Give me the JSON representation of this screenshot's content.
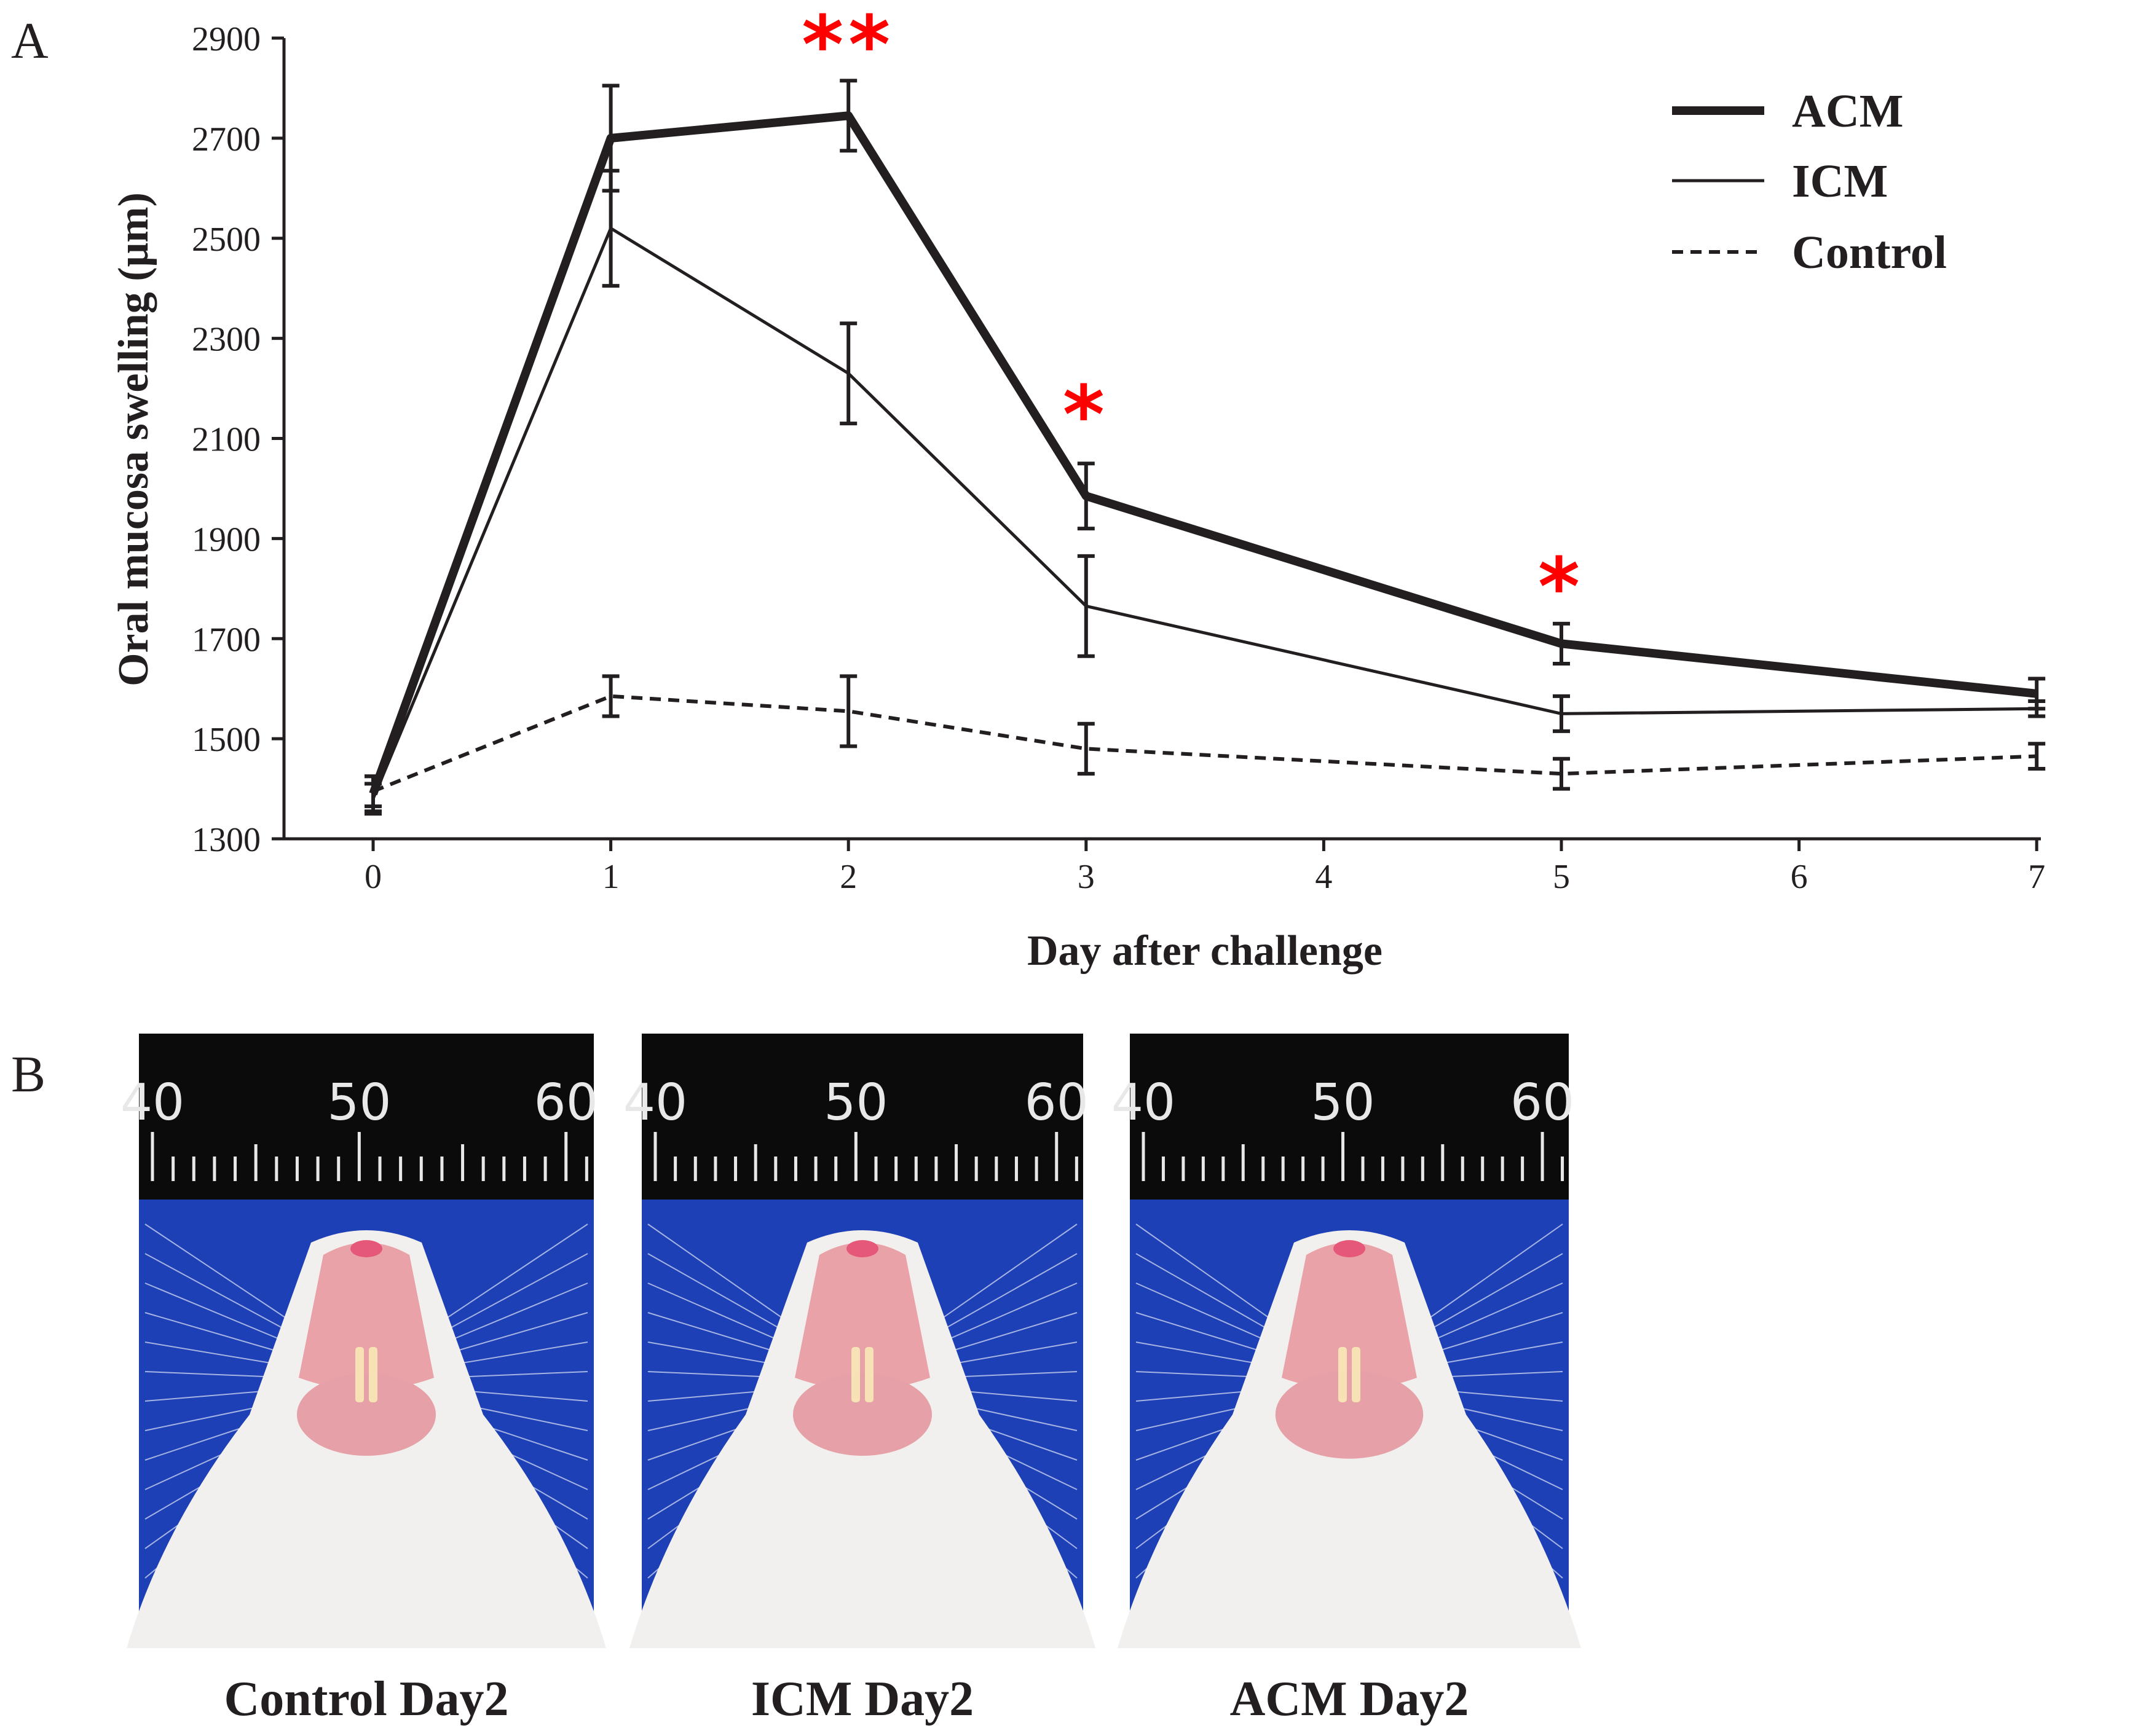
{
  "panels": {
    "a": "A",
    "b": "B"
  },
  "chart_data": {
    "type": "line",
    "title": "",
    "xlabel": "Day after challenge",
    "ylabel": "Oral mucosa swelling (μm)",
    "x": [
      0,
      1,
      2,
      3,
      5,
      7
    ],
    "xticks": [
      "0",
      "1",
      "2",
      "3",
      "4",
      "5",
      "6",
      "7"
    ],
    "xlim": [
      0,
      7
    ],
    "ylim": [
      1300,
      2900
    ],
    "yticks": [
      "1300",
      "1500",
      "1700",
      "1900",
      "2100",
      "2300",
      "2500",
      "2700",
      "2900"
    ],
    "grid": false,
    "legend_position": "top-right",
    "series": [
      {
        "name": "ACM",
        "style": "thick",
        "values": [
          1390,
          2700,
          2745,
          1985,
          1690,
          1590
        ],
        "errors": [
          35,
          105,
          70,
          65,
          40,
          30
        ]
      },
      {
        "name": "ICM",
        "style": "thin",
        "values": [
          1380,
          2520,
          2230,
          1765,
          1550,
          1560
        ],
        "errors": [
          30,
          115,
          100,
          100,
          35,
          15
        ]
      },
      {
        "name": "Control",
        "style": "dashed",
        "values": [
          1395,
          1585,
          1555,
          1480,
          1430,
          1465
        ],
        "errors": [
          30,
          40,
          70,
          50,
          30,
          25
        ]
      }
    ],
    "significance": [
      {
        "day": 2,
        "label": "**"
      },
      {
        "day": 3,
        "label": "*"
      },
      {
        "day": 5,
        "label": "*"
      }
    ],
    "colors": {
      "line": "#231f20",
      "significance": "#ff0000"
    }
  },
  "photos": [
    {
      "caption": "Control Day2",
      "ruler_labels": [
        "40",
        "50",
        "60"
      ]
    },
    {
      "caption": "ICM Day2",
      "ruler_labels": [
        "40",
        "50",
        "60"
      ]
    },
    {
      "caption": "ACM Day2",
      "ruler_labels": [
        "40",
        "50",
        "60"
      ]
    }
  ]
}
